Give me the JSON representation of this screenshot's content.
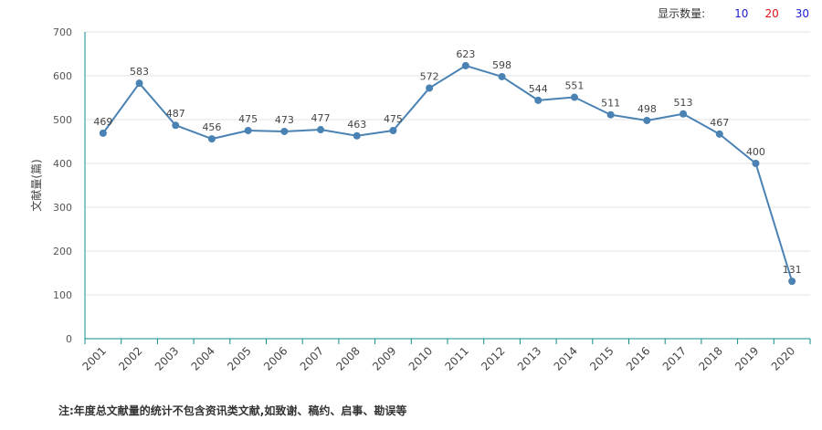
{
  "controls": {
    "display_count_label": "显示数量:",
    "options": [
      {
        "label": "10",
        "color": "#1a1ad0"
      },
      {
        "label": "20",
        "color": "#e01010"
      },
      {
        "label": "30",
        "color": "#1a1ad0"
      }
    ]
  },
  "footnote": "注:年度总文献量的统计不包含资讯类文献,如致谢、稿约、启事、勘误等",
  "chart_data": {
    "type": "line",
    "title": "",
    "xlabel": "",
    "ylabel": "文献量(篇)",
    "ylim": [
      0,
      700
    ],
    "yticks": [
      0,
      100,
      200,
      300,
      400,
      500,
      600,
      700
    ],
    "grid": true,
    "categories": [
      "2001",
      "2002",
      "2003",
      "2004",
      "2005",
      "2006",
      "2007",
      "2008",
      "2009",
      "2010",
      "2011",
      "2012",
      "2013",
      "2014",
      "2015",
      "2016",
      "2017",
      "2018",
      "2019",
      "2020"
    ],
    "series": [
      {
        "values": [
          469,
          583,
          487,
          456,
          475,
          473,
          477,
          463,
          475,
          572,
          623,
          598,
          544,
          551,
          511,
          498,
          513,
          467,
          400,
          131
        ],
        "color": "#4a82b4"
      }
    ],
    "axis_color": "#0e8d8d",
    "grid_color": "#e3e3e3"
  }
}
